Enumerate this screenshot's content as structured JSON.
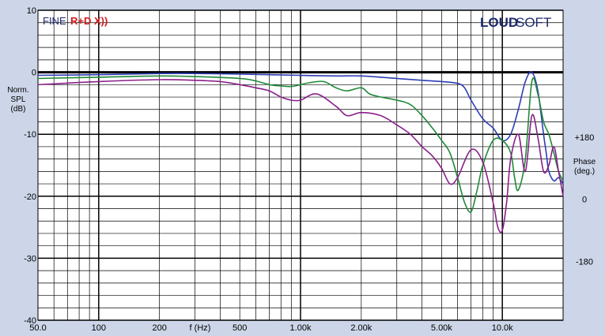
{
  "chart_data": {
    "type": "line",
    "x_scale": "log",
    "xlim": [
      50,
      20000
    ],
    "ylim": [
      -40,
      10
    ],
    "xlabel": "f (Hz)",
    "ylabel_lines": [
      "Norm.",
      "SPL",
      "(dB)"
    ],
    "y2label_lines": [
      "Phase",
      "(deg.)"
    ],
    "x_ticks": [
      {
        "value": 50,
        "label": "50.0"
      },
      {
        "value": 100,
        "label": "100"
      },
      {
        "value": 200,
        "label": "200"
      },
      {
        "value": 500,
        "label": "500"
      },
      {
        "value": 1000,
        "label": "1.00k"
      },
      {
        "value": 2000,
        "label": "2.00k"
      },
      {
        "value": 5000,
        "label": "5.00k"
      },
      {
        "value": 10000,
        "label": "10.0k"
      }
    ],
    "y_ticks": [
      {
        "value": 10,
        "label": "10"
      },
      {
        "value": 0,
        "label": "0"
      },
      {
        "value": -10,
        "label": "-10"
      },
      {
        "value": -20,
        "label": "-20"
      },
      {
        "value": -30,
        "label": "-30"
      },
      {
        "value": -40,
        "label": "-40"
      }
    ],
    "y2_ticks": [
      {
        "value": -10.5,
        "label": "+180"
      },
      {
        "value": -20.5,
        "label": "0"
      },
      {
        "value": -30.5,
        "label": "-180"
      }
    ],
    "grid": true,
    "series": [
      {
        "color": "#2c3cb4",
        "x": [
          50,
          100,
          200,
          300,
          500,
          700,
          1000,
          1500,
          2000,
          3000,
          4000,
          5000,
          6000,
          6500,
          7000,
          8000,
          9000,
          10000,
          11000,
          12000,
          13000,
          14000,
          15000,
          16000,
          16500,
          17000,
          18000,
          19000,
          20000
        ],
        "y": [
          -0.5,
          -0.4,
          -0.2,
          -0.2,
          -0.3,
          -0.4,
          -0.5,
          -0.6,
          -0.6,
          -1.0,
          -1.3,
          -1.5,
          -1.8,
          -2.5,
          -4.5,
          -7.5,
          -9.0,
          -11.0,
          -10.0,
          -6.0,
          -1.5,
          0.0,
          -3.0,
          -10.0,
          -13.0,
          -16.0,
          -17.5,
          -17.0,
          -18.0
        ]
      },
      {
        "color": "#1f8a38",
        "x": [
          50,
          100,
          200,
          300,
          500,
          600,
          700,
          800,
          900,
          1000,
          1100,
          1300,
          1500,
          1700,
          2000,
          2200,
          2500,
          3000,
          3500,
          4000,
          4500,
          5000,
          5500,
          6000,
          6500,
          7000,
          7500,
          8000,
          9000,
          10000,
          11000,
          11500,
          12000,
          13000,
          14000,
          15000,
          16000,
          17000,
          18000,
          19000,
          20000
        ],
        "y": [
          -1.0,
          -0.8,
          -0.6,
          -0.7,
          -1.0,
          -1.4,
          -2.0,
          -2.2,
          -2.3,
          -2.0,
          -1.7,
          -1.5,
          -2.5,
          -3.0,
          -2.5,
          -3.5,
          -4.0,
          -4.5,
          -5.2,
          -7.0,
          -9.0,
          -11.0,
          -13.0,
          -17.0,
          -21.0,
          -22.5,
          -19.0,
          -15.0,
          -11.0,
          -11.0,
          -13.0,
          -17.0,
          -19.0,
          -14.0,
          -1.5,
          -3.5,
          -8.0,
          -10.0,
          -13.0,
          -16.0,
          -17.5
        ]
      },
      {
        "color": "#8a1f8a",
        "x": [
          50,
          100,
          200,
          300,
          400,
          500,
          600,
          700,
          800,
          900,
          1000,
          1200,
          1500,
          1700,
          2000,
          2500,
          3000,
          3500,
          4000,
          4500,
          5000,
          5500,
          6000,
          7000,
          8000,
          9000,
          9500,
          10000,
          10500,
          11000,
          12000,
          13000,
          14000,
          15000,
          16000,
          17000,
          18000,
          19000,
          20000
        ],
        "y": [
          -2.0,
          -1.5,
          -1.2,
          -1.3,
          -1.5,
          -2.0,
          -2.5,
          -3.0,
          -4.0,
          -4.5,
          -4.5,
          -3.5,
          -5.5,
          -7.0,
          -6.5,
          -7.0,
          -8.5,
          -10.0,
          -12.0,
          -13.5,
          -15.5,
          -18.0,
          -17.0,
          -12.5,
          -14.5,
          -21.0,
          -25.0,
          -25.5,
          -21.0,
          -14.0,
          -10.0,
          -16.0,
          -7.0,
          -10.5,
          -16.0,
          -15.0,
          -12.0,
          -16.0,
          -20.0
        ]
      }
    ]
  },
  "brand": {
    "fine_prefix": "FINE",
    "fine_suffix": "R+D X))",
    "logo_bold": "LOUD",
    "logo_light": "SOFT",
    "fine_color": "#1e2a6e",
    "rd_color": "#d01c1c",
    "logo_color": "#1e2a6e"
  }
}
